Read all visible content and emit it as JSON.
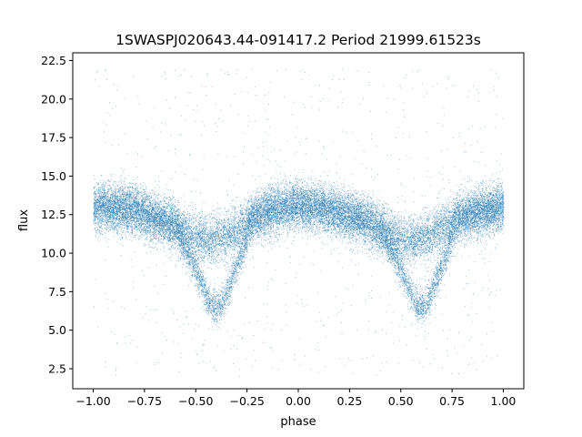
{
  "chart_data": {
    "type": "scatter",
    "title": "1SWASPJ020643.44-091417.2 Period 21999.61523s",
    "xlabel": "phase",
    "ylabel": "flux",
    "xlim": [
      -1.1,
      1.1
    ],
    "ylim": [
      1.2,
      23.0
    ],
    "x_ticks": [
      -1.0,
      -0.75,
      -0.5,
      -0.25,
      0.0,
      0.25,
      0.5,
      0.75,
      1.0
    ],
    "x_tick_labels": [
      "−1.00",
      "−0.75",
      "−0.50",
      "−0.25",
      "0.00",
      "0.25",
      "0.50",
      "0.75",
      "1.00"
    ],
    "y_ticks": [
      2.5,
      5.0,
      7.5,
      10.0,
      12.5,
      15.0,
      17.5,
      20.0,
      22.5
    ],
    "y_tick_labels": [
      "2.5",
      "5.0",
      "7.5",
      "10.0",
      "12.5",
      "15.0",
      "17.5",
      "20.0",
      "22.5"
    ],
    "grid": false,
    "point_color": "#1f77b4",
    "series": [
      {
        "phase_range": [
          -1.0,
          1.0
        ],
        "upper_branch": {
          "x": [
            -1.0,
            -0.9,
            -0.8,
            -0.7,
            -0.6,
            -0.5,
            -0.45,
            -0.4,
            -0.35,
            -0.3,
            -0.2,
            -0.1,
            0.0,
            0.1,
            0.2,
            0.3,
            0.4,
            0.5,
            0.55,
            0.6,
            0.65,
            0.7,
            0.8,
            0.9,
            1.0
          ],
          "y": [
            13.0,
            13.0,
            12.8,
            12.3,
            11.8,
            11.0,
            10.9,
            11.0,
            11.2,
            11.6,
            12.4,
            12.9,
            13.1,
            13.0,
            12.6,
            12.2,
            11.6,
            11.0,
            10.9,
            11.0,
            11.3,
            11.7,
            12.4,
            12.8,
            13.0
          ]
        },
        "lower_branch": {
          "x": [
            -0.58,
            -0.5,
            -0.45,
            -0.42,
            -0.38,
            -0.35,
            -0.3,
            -0.25,
            0.42,
            0.5,
            0.55,
            0.58,
            0.62,
            0.65,
            0.7,
            0.75
          ],
          "y": [
            11.0,
            9.0,
            7.3,
            6.5,
            6.6,
            7.5,
            9.2,
            11.0,
            11.0,
            9.0,
            7.3,
            6.5,
            6.6,
            7.5,
            9.2,
            11.0
          ]
        },
        "scatter_range": [
          2.0,
          22.0
        ]
      }
    ]
  }
}
